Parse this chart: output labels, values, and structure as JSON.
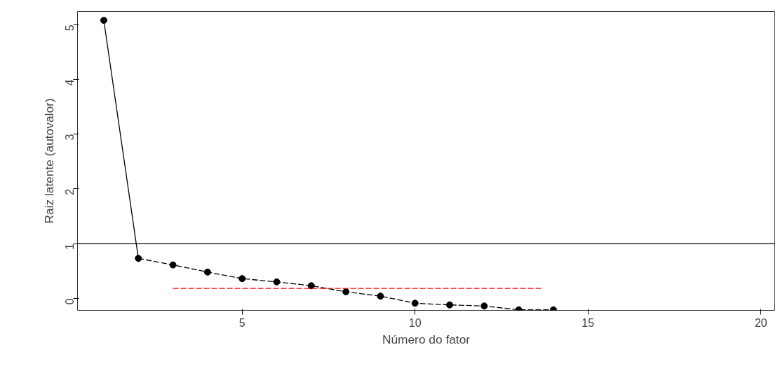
{
  "chart_data": {
    "type": "line",
    "xlabel": "Número do fator",
    "ylabel": "Raiz latente (autovalor)",
    "xlim": [
      0.24,
      20.4
    ],
    "ylim": [
      -0.22,
      5.24
    ],
    "xticks": [
      5,
      10,
      15,
      20
    ],
    "yticks": [
      0,
      1,
      2,
      3,
      4,
      5
    ],
    "grid": false,
    "series": [
      {
        "color": "#000000",
        "line_style": "solid",
        "marker": "none",
        "x": [
          1,
          2
        ],
        "values": [
          5.08,
          0.73
        ]
      },
      {
        "color": "#000000",
        "line_style": "dashed",
        "marker": "none",
        "x": [
          2,
          3,
          4,
          5,
          6,
          7,
          8,
          9,
          10,
          11,
          12,
          13,
          14
        ],
        "values": [
          0.73,
          0.61,
          0.48,
          0.36,
          0.3,
          0.23,
          0.12,
          0.04,
          -0.09,
          -0.12,
          -0.14,
          -0.21,
          -0.21
        ]
      },
      {
        "type": "scatter",
        "color": "#000000",
        "marker": "circle",
        "x": [
          1,
          2,
          3,
          4,
          5,
          6,
          7,
          8,
          9,
          10,
          11,
          12,
          13,
          14
        ],
        "values": [
          5.08,
          0.73,
          0.61,
          0.48,
          0.36,
          0.3,
          0.23,
          0.12,
          0.04,
          -0.09,
          -0.12,
          -0.14,
          -0.21,
          -0.21
        ]
      },
      {
        "color": "#ff0000",
        "line_style": "dashed",
        "marker": "none",
        "x": [
          3,
          13.7
        ],
        "values": [
          0.18,
          0.18
        ]
      }
    ],
    "ref_lines": [
      {
        "axis": "y",
        "value": 1,
        "label": null,
        "color": "#000000",
        "line_style": "solid"
      }
    ]
  }
}
